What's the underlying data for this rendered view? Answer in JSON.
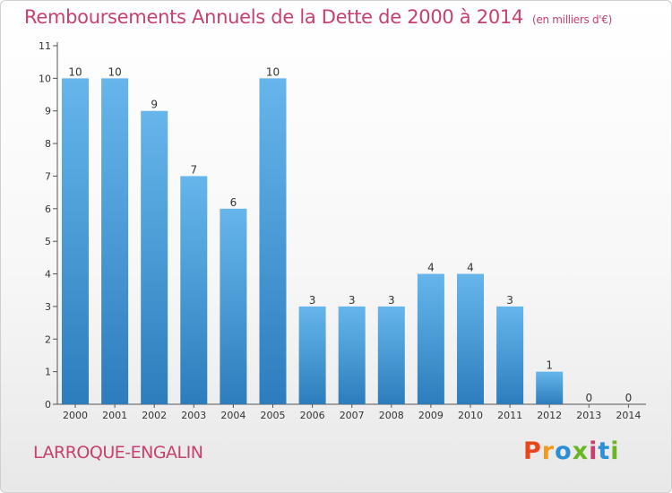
{
  "header": {
    "title": "Remboursements Annuels de la Dette de 2000 à 2014",
    "unit": "(en milliers d'€)"
  },
  "footer": {
    "commune": "LARROQUE-ENGALIN",
    "logo": "Proxiti"
  },
  "colors": {
    "title": "#c8416c",
    "bar_light": "#62b3ea",
    "bar_dark": "#2e7fbf",
    "logo": [
      "#e8471c",
      "#f29a1d",
      "#2a8fd6",
      "#6bb523",
      "#c8416c",
      "#2a8fd6",
      "#6bb523"
    ]
  },
  "chart_data": {
    "type": "bar",
    "categories": [
      "2000",
      "2001",
      "2002",
      "2003",
      "2004",
      "2005",
      "2006",
      "2007",
      "2008",
      "2009",
      "2010",
      "2011",
      "2012",
      "2013",
      "2014"
    ],
    "values": [
      10,
      10,
      9,
      7,
      6,
      10,
      3,
      3,
      3,
      4,
      4,
      3,
      1,
      0,
      0
    ],
    "title": "Remboursements Annuels de la Dette de 2000 à 2014",
    "xlabel": "",
    "ylabel": "",
    "ylim": [
      0,
      11
    ],
    "yticks": [
      0,
      1,
      2,
      3,
      4,
      5,
      6,
      7,
      8,
      9,
      10,
      11
    ],
    "grid": false,
    "show_data_labels": true
  }
}
